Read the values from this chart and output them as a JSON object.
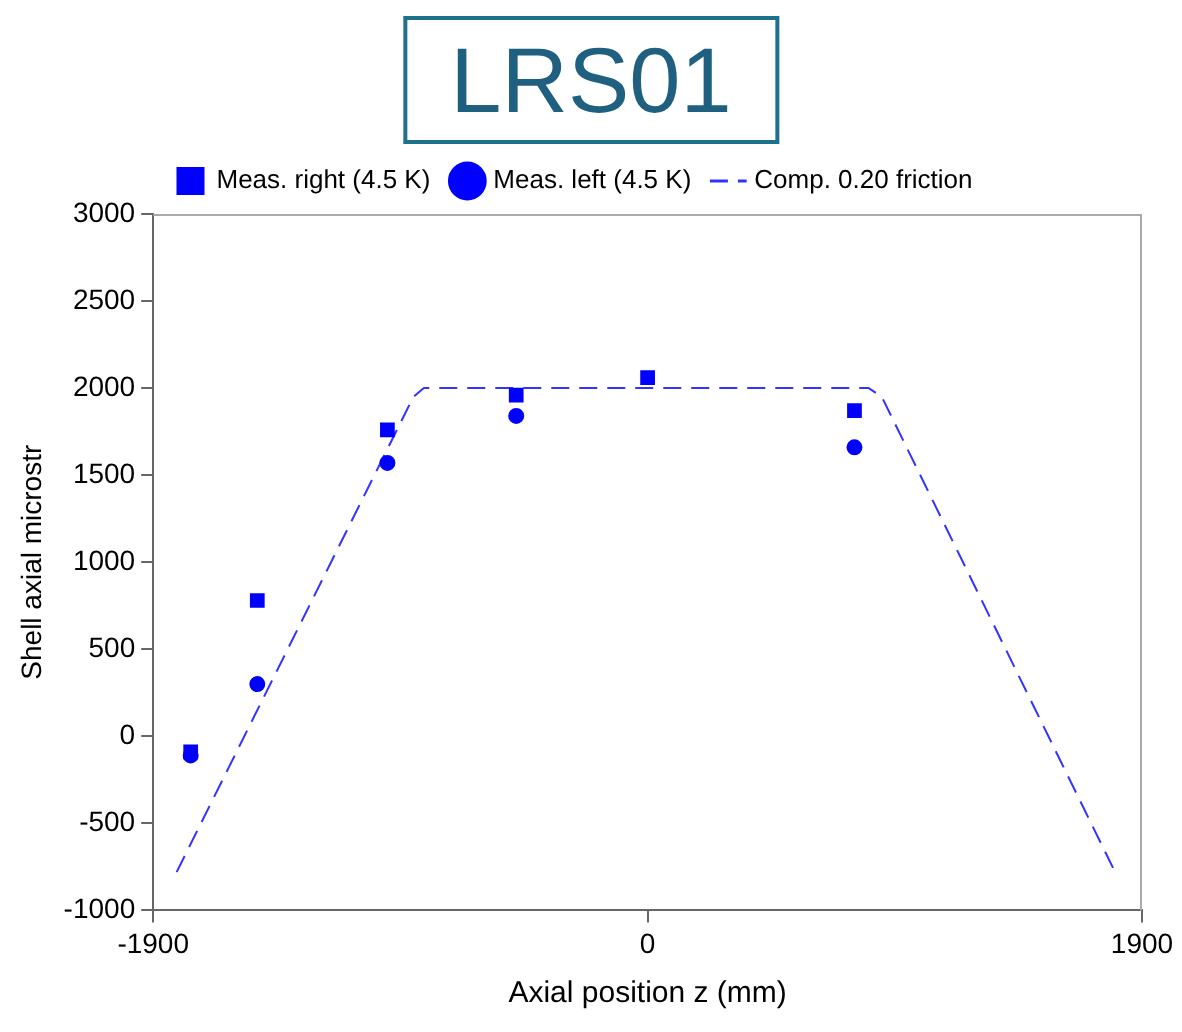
{
  "chart_data": {
    "type": "scatter",
    "title": "LRS01",
    "xlabel": "Axial position z (mm)",
    "ylabel": "Shell axial microstr",
    "xlim": [
      -1900,
      1900
    ],
    "xticks": [
      -1900,
      0,
      1900
    ],
    "ylim": [
      -1000,
      3000
    ],
    "yticks": [
      -1000,
      -500,
      0,
      500,
      1000,
      1500,
      2000,
      2500,
      3000
    ],
    "grid": false,
    "legend": "top",
    "series": [
      {
        "name": "Meas. right (4.5 K)",
        "type": "scatter",
        "marker": "square",
        "color": "#0000ff",
        "x": [
          -1756,
          -1500,
          -1000,
          -505,
          0,
          795
        ],
        "values": [
          -90,
          780,
          1760,
          1960,
          2060,
          1870
        ]
      },
      {
        "name": "Meas. left (4.5 K)",
        "type": "scatter",
        "marker": "circle",
        "color": "#0000ff",
        "x": [
          -1756,
          -1500,
          -1000,
          -505,
          795
        ],
        "values": [
          -110,
          300,
          1570,
          1840,
          1660
        ]
      },
      {
        "name": "Comp. 0.20 friction",
        "type": "line",
        "marker": "none",
        "line_style": "dashed",
        "color": "#3333ff",
        "x": [
          -1810,
          -900,
          -860,
          850,
          900,
          1790
        ],
        "values": [
          -780,
          1950,
          2000,
          2000,
          1950,
          -760
        ]
      }
    ]
  }
}
